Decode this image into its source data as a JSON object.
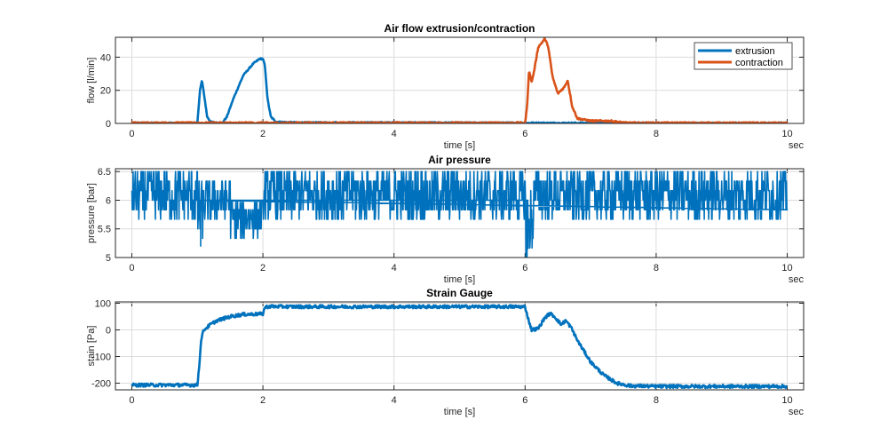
{
  "chart_data": [
    {
      "type": "line",
      "title": "Air flow extrusion/contraction",
      "xlabel": "time [s]",
      "ylabel": "flow [l/min]",
      "x_unit_label": "sec",
      "xlim": [
        -0.25,
        10.25
      ],
      "ylim": [
        0,
        52
      ],
      "xticks": [
        0,
        2,
        4,
        6,
        8,
        10
      ],
      "yticks": [
        0,
        20,
        40
      ],
      "grid": true,
      "legend": "top-right",
      "series": [
        {
          "name": "extrusion",
          "color": "#0072BD",
          "noise": 0.4,
          "x": [
            0,
            1.0,
            1.04,
            1.07,
            1.1,
            1.15,
            1.2,
            1.3,
            1.38,
            1.45,
            1.55,
            1.7,
            1.85,
            1.95,
            2.0,
            2.03,
            2.07,
            2.12,
            2.2,
            2.5,
            4.0,
            6.0,
            7.5,
            10.0
          ],
          "y": [
            0.3,
            0.3,
            20,
            26,
            18,
            4,
            1,
            0.3,
            0.3,
            4,
            15,
            29,
            36,
            39,
            39,
            35,
            15,
            4,
            1,
            0.5,
            0.5,
            0.3,
            0.2,
            0.2
          ]
        },
        {
          "name": "contraction",
          "color": "#D95319",
          "noise": 0.5,
          "x": [
            0,
            6.0,
            6.03,
            6.06,
            6.1,
            6.13,
            6.2,
            6.3,
            6.35,
            6.42,
            6.5,
            6.6,
            6.65,
            6.72,
            6.8,
            7.0,
            7.3,
            7.5,
            7.6,
            10.0
          ],
          "y": [
            0.3,
            0.3,
            10,
            32,
            25,
            30,
            46,
            51,
            47,
            28,
            18,
            22,
            26,
            10,
            3,
            1.5,
            1.5,
            0.5,
            0.3,
            0.2
          ]
        }
      ]
    },
    {
      "type": "line",
      "title": "Air pressure",
      "xlabel": "time [s]",
      "ylabel": "pressure [bar]",
      "x_unit_label": "sec",
      "xlim": [
        -0.25,
        10.25
      ],
      "ylim": [
        5,
        6.55
      ],
      "xticks": [
        0,
        2,
        4,
        6,
        8,
        10
      ],
      "yticks": [
        5,
        5.5,
        6,
        6.5
      ],
      "grid": true,
      "series": [
        {
          "color": "#0072BD",
          "quantum": 0.1667,
          "segments": [
            {
              "x": [
                0,
                1.0
              ],
              "center": 6.1,
              "spread": 0.45
            },
            {
              "x": [
                1.0,
                1.1
              ],
              "center": 5.8,
              "spread": 0.55
            },
            {
              "x": [
                1.1,
                1.5
              ],
              "center": 6.0,
              "spread": 0.4
            },
            {
              "x": [
                1.5,
                2.0
              ],
              "center": 5.7,
              "spread": 0.35
            },
            {
              "x": [
                2.0,
                6.0
              ],
              "center": 6.1,
              "spread": 0.45
            },
            {
              "x": [
                6.0,
                6.12
              ],
              "center": 5.6,
              "spread": 0.6
            },
            {
              "x": [
                6.12,
                10.0
              ],
              "center": 6.1,
              "spread": 0.45
            }
          ]
        }
      ]
    },
    {
      "type": "line",
      "title": "Strain Gauge",
      "xlabel": "time [s]",
      "ylabel": "stain [Pa]",
      "x_unit_label": "sec",
      "xlim": [
        -0.25,
        10.25
      ],
      "ylim": [
        -225,
        105
      ],
      "xticks": [
        0,
        2,
        4,
        6,
        8,
        10
      ],
      "yticks": [
        -200,
        -100,
        0,
        100
      ],
      "grid": true,
      "series": [
        {
          "color": "#0072BD",
          "noise": 6,
          "x": [
            0,
            1.0,
            1.03,
            1.06,
            1.1,
            1.2,
            1.3,
            1.5,
            1.7,
            2.0,
            2.03,
            2.1,
            2.5,
            4.0,
            6.0,
            6.05,
            6.1,
            6.2,
            6.3,
            6.38,
            6.45,
            6.55,
            6.62,
            6.7,
            6.8,
            7.0,
            7.2,
            7.4,
            7.6,
            8.0,
            10.0
          ],
          "y": [
            -207,
            -207,
            -130,
            -30,
            0,
            20,
            35,
            50,
            58,
            60,
            85,
            88,
            87,
            87,
            87,
            40,
            0,
            5,
            45,
            62,
            50,
            20,
            35,
            10,
            -40,
            -120,
            -170,
            -200,
            -210,
            -212,
            -212
          ]
        }
      ]
    }
  ]
}
